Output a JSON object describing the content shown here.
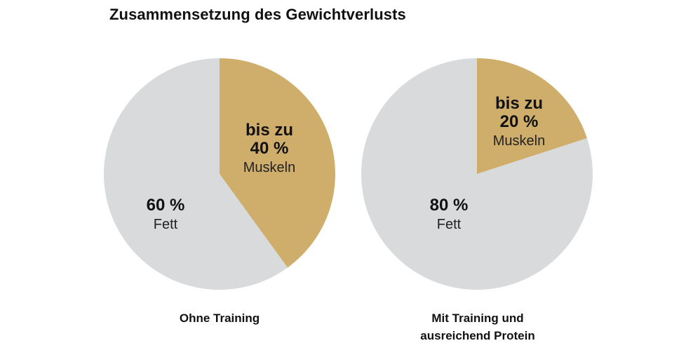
{
  "title": "Zusammensetzung des Gewichtverlusts",
  "chart_data": [
    {
      "type": "pie",
      "caption": [
        "Ohne Training"
      ],
      "slices": [
        {
          "label_lines": [
            "bis zu",
            "40 %"
          ],
          "name": "Muskeln",
          "value": 40,
          "color": "#cfae6c"
        },
        {
          "label_lines": [
            "60 %"
          ],
          "name": "Fett",
          "value": 60,
          "color": "#d9dadb"
        }
      ]
    },
    {
      "type": "pie",
      "caption": [
        "Mit Training und",
        "ausreichend Protein"
      ],
      "slices": [
        {
          "label_lines": [
            "bis zu",
            "20 %"
          ],
          "name": "Muskeln",
          "value": 20,
          "color": "#cfae6c"
        },
        {
          "label_lines": [
            "80 %"
          ],
          "name": "Fett",
          "value": 80,
          "color": "#d9dadb"
        }
      ]
    }
  ]
}
